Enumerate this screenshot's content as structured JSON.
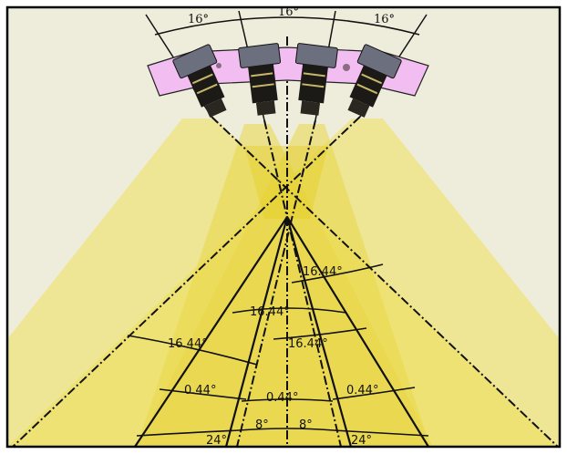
{
  "diagram": {
    "colors": {
      "background": "#eeeddc",
      "border": "#000000",
      "beam": "#f2e23a",
      "beam_core": "#e2cc12",
      "mount": "#f2bdf0",
      "camera_dark": "#1c1a16",
      "camera_face": "#6c6f7e",
      "lines": "#111111"
    },
    "top_angles": [
      {
        "label": "16°"
      },
      {
        "label": "16°"
      },
      {
        "label": "16°"
      }
    ],
    "beam_angles_upper": [
      {
        "label": "16.44°"
      },
      {
        "label": "16.44°"
      },
      {
        "label": "16.44°"
      },
      {
        "label": "16.44°"
      }
    ],
    "overlap_angles": [
      {
        "label": "0.44°"
      },
      {
        "label": "0.44°"
      },
      {
        "label": "0.44°"
      }
    ],
    "bottom_angles": [
      {
        "label": "24°"
      },
      {
        "label": "8°"
      },
      {
        "label": "8°"
      },
      {
        "label": "24°"
      }
    ]
  }
}
